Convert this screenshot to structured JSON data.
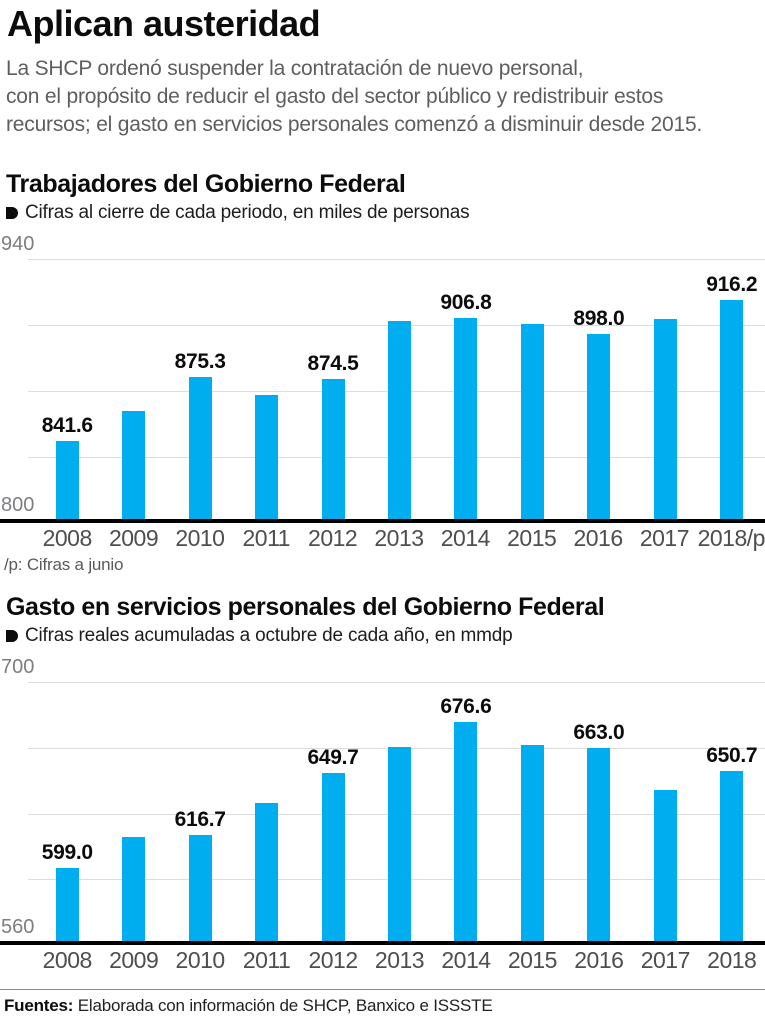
{
  "header": {
    "title": "Aplican austeridad",
    "intro_lines": [
      "La SHCP ordenó suspender la contratación de nuevo personal,",
      "con el propósito de reducir el gasto del sector público y redistribuir estos",
      "recursos; el gasto en servicios personales comenzó a disminuir desde 2015."
    ]
  },
  "colors": {
    "bar": "#00ADEE",
    "gridline": "#dcdcdc",
    "baseline": "#000000",
    "axis_label": "#7d7e81",
    "year_label": "#4d4e50"
  },
  "chart_data": [
    {
      "type": "bar",
      "title": "Trabajadores del Gobierno Federal",
      "subtitle": "Cifras al cierre de cada periodo, en miles de personas",
      "categories": [
        "2008",
        "2009",
        "2010",
        "2011",
        "2012",
        "2013",
        "2014",
        "2015",
        "2016",
        "2017",
        "2018/p"
      ],
      "values": [
        841.6,
        857.3,
        875.3,
        865.8,
        874.5,
        905.1,
        906.8,
        903.4,
        898.0,
        905.9,
        916.2
      ],
      "data_labels": [
        "841.6",
        "",
        "875.3",
        "",
        "874.5",
        "",
        "906.8",
        "",
        "898.0",
        "",
        "916.2"
      ],
      "ylim": [
        800,
        940
      ],
      "yticks_shown": [
        "940",
        "800"
      ],
      "gridlines": [
        940,
        905,
        870,
        835
      ],
      "grid": true,
      "legend": "none",
      "footnote": "/p: Cifras a junio"
    },
    {
      "type": "bar",
      "title": "Gasto en servicios personales del Gobierno Federal",
      "subtitle": "Cifras reales acumuladas a octubre de cada año, en mmdp",
      "categories": [
        "2008",
        "2009",
        "2010",
        "2011",
        "2012",
        "2013",
        "2014",
        "2015",
        "2016",
        "2017",
        "2018"
      ],
      "values": [
        599.0,
        615.5,
        616.7,
        633.6,
        649.7,
        663.5,
        676.6,
        664.5,
        663.0,
        640.3,
        650.7
      ],
      "data_labels": [
        "599.0",
        "",
        "616.7",
        "",
        "649.7",
        "",
        "676.6",
        "",
        "663.0",
        "",
        "650.7"
      ],
      "ylim": [
        560,
        700
      ],
      "yticks_shown": [
        "700",
        "560"
      ],
      "gridlines": [
        700,
        665,
        630,
        595
      ],
      "grid": true,
      "legend": "none",
      "footnote": ""
    }
  ],
  "footer": {
    "label": "Fuentes:",
    "text": " Elaborada con información de SHCP, Banxico e ISSSTE"
  }
}
